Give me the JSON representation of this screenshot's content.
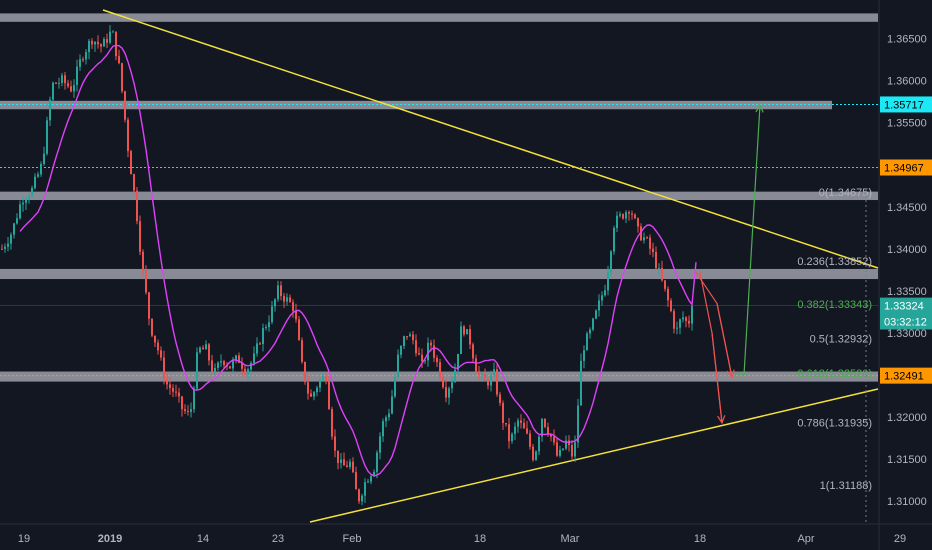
{
  "chart_data": {
    "type": "candlestick",
    "x_ticks": [
      "19",
      "2019",
      "14",
      "23",
      "Feb",
      "18",
      "Mar",
      "18",
      "Apr",
      "29"
    ],
    "y_ticks": [
      "1.36500",
      "1.36000",
      "1.35500",
      "1.35000",
      "1.34500",
      "1.34000",
      "1.33500",
      "1.33000",
      "1.32500",
      "1.32000",
      "1.31500",
      "1.31000"
    ],
    "ylim": [
      1.3075,
      1.369
    ],
    "price_labels": [
      {
        "text": "1.35717",
        "value": 1.35717,
        "bg": "#1de9f6",
        "fg": "#000000"
      },
      {
        "text": "1.34967",
        "value": 1.34967,
        "bg": "#ff9800",
        "fg": "#000000"
      },
      {
        "text": "1.33324",
        "value": 1.33324,
        "bg": "#26a69a",
        "fg": "#ffffff"
      },
      {
        "text": "03:32:12",
        "value": 1.33135,
        "bg": "#26a69a",
        "fg": "#ffffff"
      },
      {
        "text": "1.32491",
        "value": 1.32491,
        "bg": "#ff9800",
        "fg": "#000000"
      }
    ],
    "fib_levels": [
      {
        "text": "0(1.34675)",
        "value": 1.34675,
        "color": "#b2b5be"
      },
      {
        "text": "0.236(1.33852)",
        "value": 1.33852,
        "color": "#b2b5be"
      },
      {
        "text": "0.382(1.33343)",
        "value": 1.33343,
        "color": "#4caf50"
      },
      {
        "text": "0.5(1.32932)",
        "value": 1.32932,
        "color": "#b2b5be"
      },
      {
        "text": "0.618(1.32520)",
        "value": 1.3252,
        "color": "#4caf50"
      },
      {
        "text": "0.786(1.31935)",
        "value": 1.31935,
        "color": "#b2b5be"
      },
      {
        "text": "1(1.31188)",
        "value": 1.31188,
        "color": "#b2b5be"
      }
    ],
    "zones": [
      {
        "low": 1.367,
        "high": 1.368
      },
      {
        "low": 1.3566,
        "high": 1.3576
      },
      {
        "low": 1.3458,
        "high": 1.3468
      },
      {
        "low": 1.3364,
        "high": 1.3376
      },
      {
        "low": 1.3242,
        "high": 1.3254
      }
    ],
    "dotted_levels": [
      {
        "value": 1.35717,
        "color": "#1de9f6"
      },
      {
        "value": 1.34967,
        "color": "#ff9800"
      },
      {
        "value": 1.32491,
        "color": "#ff9800"
      }
    ],
    "colors": {
      "background": "#131722",
      "up": "#26a69a",
      "down": "#ef5350",
      "moving_average": "#e040fb",
      "trendline": "#f5e13c",
      "zone": "#d1d4dc",
      "target_up": "#4caf50",
      "target_down": "#ef5350"
    }
  }
}
